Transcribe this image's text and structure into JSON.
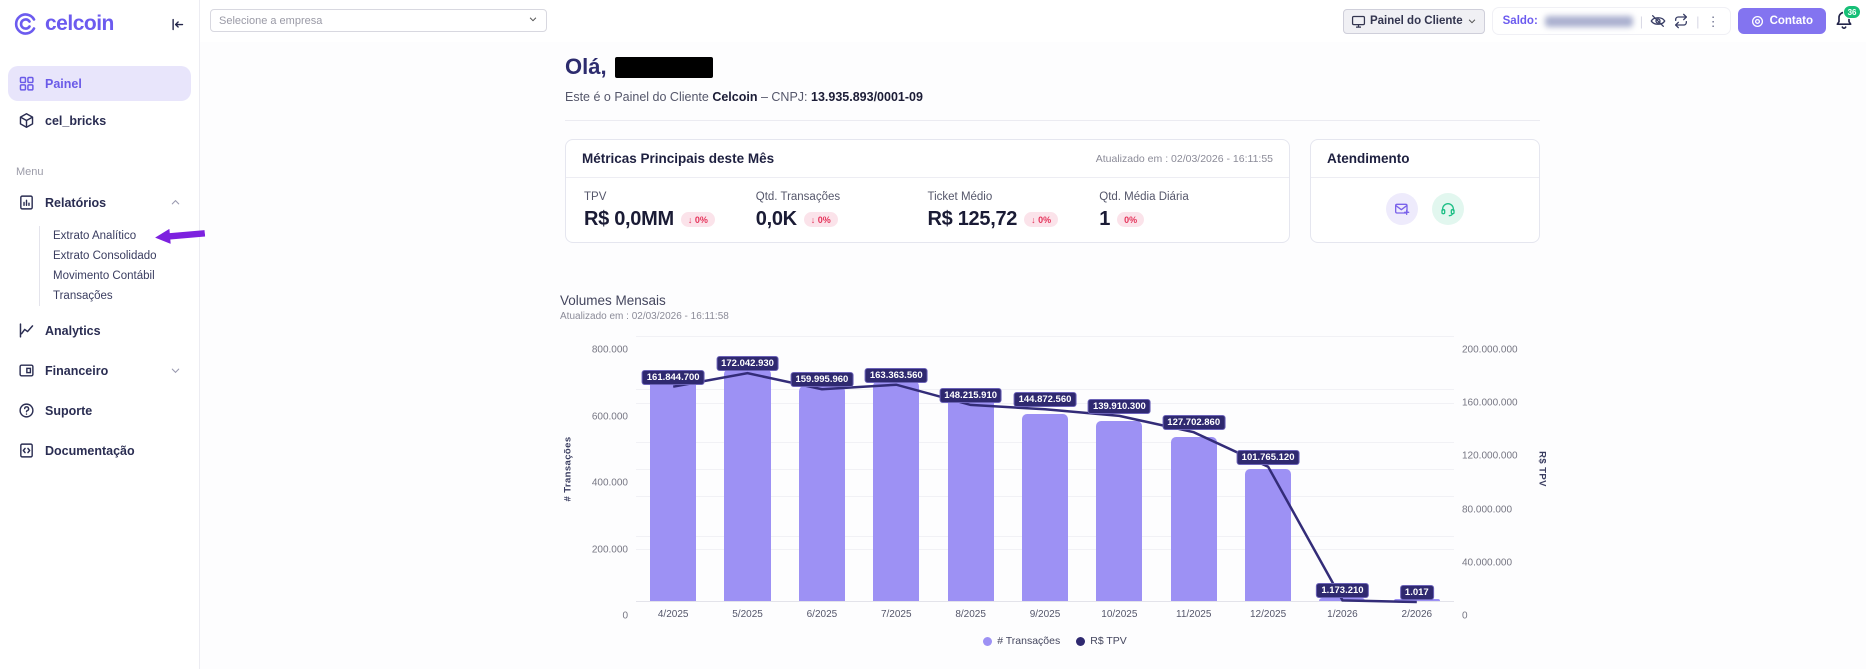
{
  "colors": {
    "brand_purple": "#6C5BEF",
    "sidebar_active_bg": "#E8E5FB",
    "bar_fill": "#9D91F4",
    "line_color": "#332C78",
    "label_pill_bg": "#2F2970",
    "badge_bg": "#FBE3EA",
    "badge_text": "#E5345B",
    "contato_bg": "#8374F0",
    "notification_green": "#17BF77",
    "annotation_arrow": "#7D21DF"
  },
  "sidebar": {
    "logo_text": "celcoin",
    "section_label": "Menu",
    "primary_items": [
      {
        "label": "Painel",
        "icon": "dashboard",
        "active": true
      },
      {
        "label": "cel_bricks",
        "icon": "cube",
        "active": false
      }
    ],
    "menu_items": [
      {
        "label": "Relatórios",
        "icon": "report",
        "chevron": "up",
        "children": [
          "Extrato Analítico",
          "Extrato Consolidado",
          "Movimento Contábil",
          "Transações"
        ],
        "annotated_child": "Extrato Analítico"
      },
      {
        "label": "Analytics",
        "icon": "analytics"
      },
      {
        "label": "Financeiro",
        "icon": "finance",
        "chevron": "down"
      },
      {
        "label": "Suporte",
        "icon": "help"
      },
      {
        "label": "Documentação",
        "icon": "doc-code"
      }
    ]
  },
  "topbar": {
    "company_select_placeholder": "Selecione a empresa",
    "view_select_label": "Painel do Cliente",
    "saldo_label": "Saldo:",
    "contato_label": "Contato",
    "notification_count": "36"
  },
  "main": {
    "greeting": "Olá,",
    "subtitle_prefix": "Este é o Painel do Cliente",
    "company_name": "Celcoin",
    "dash": "–",
    "cnpj_label": "CNPJ:",
    "cnpj_value": "13.935.893/0001-09"
  },
  "metrics_card": {
    "title": "Métricas Principais deste Mês",
    "updated_at": "Atualizado em : 02/03/2026 - 16:11:55",
    "metrics": [
      {
        "label": "TPV",
        "value": "R$ 0,0MM",
        "badge": "↓ 0%"
      },
      {
        "label": "Qtd. Transações",
        "value": "0,0K",
        "badge": "↓ 0%"
      },
      {
        "label": "Ticket Médio",
        "value": "R$ 125,72",
        "badge": "↓ 0%"
      },
      {
        "label": "Qtd. Média Diária",
        "value": "1",
        "badge": "0%"
      }
    ]
  },
  "atendimento_card": {
    "title": "Atendimento",
    "icons": [
      "mail-plus",
      "headset"
    ]
  },
  "chart_data": {
    "type": "bar+line",
    "title": "Volumes Mensais",
    "updated_at": "Atualizado em : 02/03/2026 - 16:11:58",
    "categories": [
      "4/2025",
      "5/2025",
      "6/2025",
      "7/2025",
      "8/2025",
      "9/2025",
      "10/2025",
      "11/2025",
      "12/2025",
      "1/2026",
      "2/2026"
    ],
    "series": [
      {
        "name": "# Transações",
        "type": "bar",
        "axis": "left",
        "values_estimated_from_pixels": true,
        "values": [
          675000,
          697000,
          646000,
          662000,
          613000,
          561000,
          540000,
          494000,
          398000,
          8000,
          5000
        ]
      },
      {
        "name": "R$ TPV",
        "type": "line",
        "axis": "right",
        "values": [
          161844700,
          172042930,
          159995960,
          163363560,
          148215910,
          144872560,
          139910300,
          127702860,
          101765120,
          1173210,
          1017
        ],
        "labels": [
          "161.844.700",
          "172.042.930",
          "159.995.960",
          "163.363.560",
          "148.215.910",
          "144.872.560",
          "139.910.300",
          "127.702.860",
          "101.765.120",
          "1.173.210",
          "1.017"
        ]
      }
    ],
    "left_axis": {
      "title": "# Transações",
      "max": 800000,
      "ticks": [
        "800.000",
        "600.000",
        "400.000",
        "200.000",
        "0"
      ],
      "tick_values": [
        800000,
        600000,
        400000,
        200000,
        0
      ]
    },
    "right_axis": {
      "title": "R$ TPV",
      "max": 200000000,
      "ticks": [
        "200.000.000",
        "160.000.000",
        "120.000.000",
        "80.000.000",
        "40.000.000",
        "0"
      ],
      "tick_values": [
        200000000,
        160000000,
        120000000,
        80000000,
        40000000,
        0
      ]
    },
    "legend": [
      "# Transações",
      "R$ TPV"
    ],
    "legend_position": "bottom",
    "grid": true
  }
}
